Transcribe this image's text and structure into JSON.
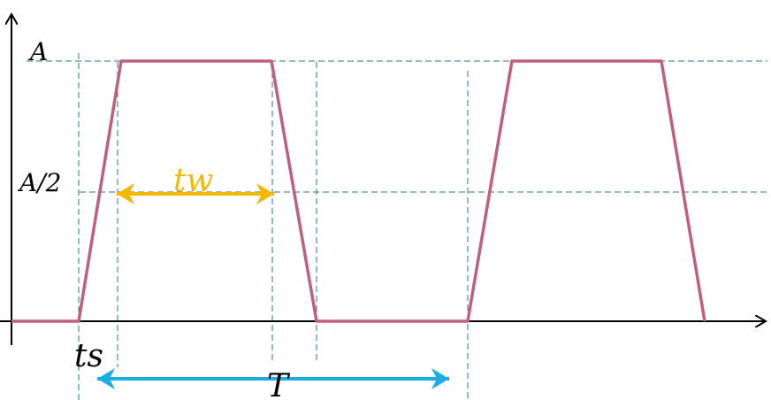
{
  "labels": {
    "amplitude": "A",
    "half_amplitude": "A/2",
    "pulse_width": "tw",
    "start_time": "ts",
    "period": "T"
  },
  "colors": {
    "waveform": "#c06080",
    "pulse_width_arrow": "#f5b800",
    "period_arrow": "#1aaee5",
    "guide_lines": "#2a7a8a",
    "axes": "#000000"
  }
}
